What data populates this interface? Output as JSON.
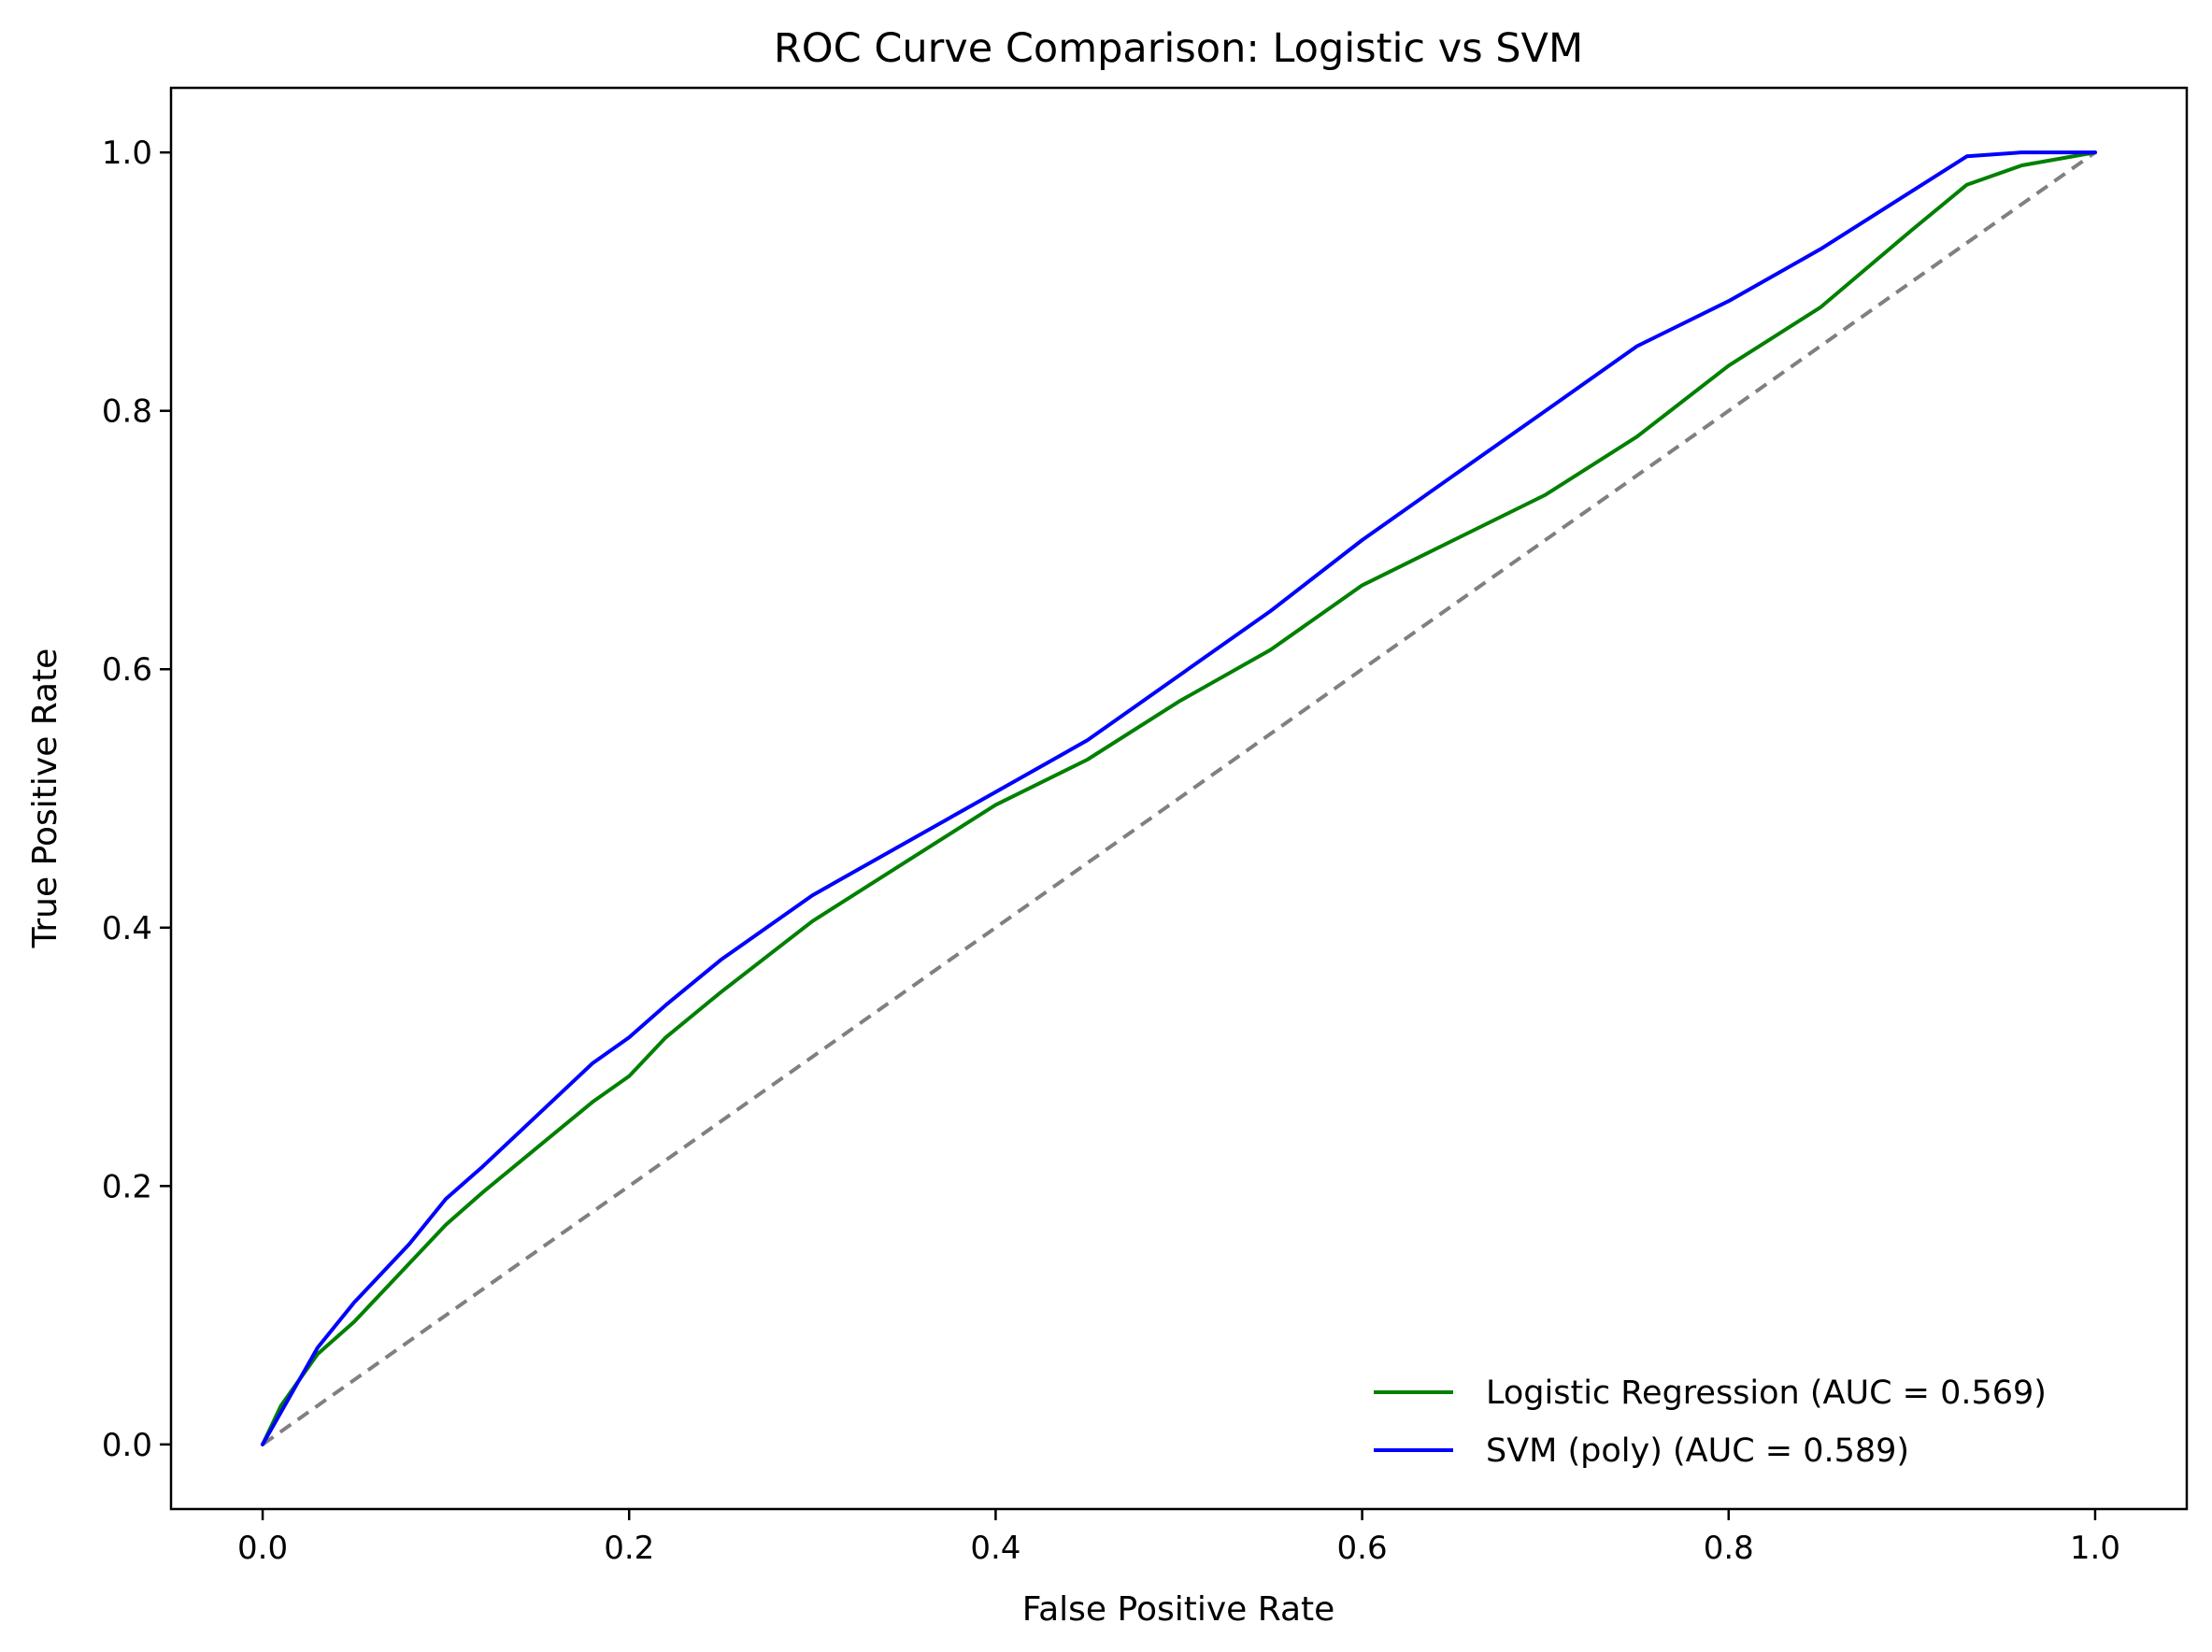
{
  "chart_data": {
    "type": "line",
    "title": "ROC Curve Comparison: Logistic vs SVM",
    "xlabel": "False Positive Rate",
    "ylabel": "True Positive Rate",
    "xlim": [
      -0.05,
      1.05
    ],
    "ylim": [
      -0.05,
      1.05
    ],
    "xticks": [
      0.0,
      0.2,
      0.4,
      0.6,
      0.8,
      1.0
    ],
    "xtick_labels": [
      "0.0",
      "0.2",
      "0.4",
      "0.6",
      "0.8",
      "1.0"
    ],
    "yticks": [
      0.0,
      0.2,
      0.4,
      0.6,
      0.8,
      1.0
    ],
    "ytick_labels": [
      "0.0",
      "0.2",
      "0.4",
      "0.6",
      "0.8",
      "1.0"
    ],
    "grid": false,
    "legend_position": "lower-right",
    "series": [
      {
        "name": "Logistic Regression (AUC = 0.569)",
        "color": "#008000",
        "style": "solid",
        "x": [
          0.0,
          0.01,
          0.02,
          0.03,
          0.05,
          0.08,
          0.1,
          0.12,
          0.15,
          0.18,
          0.2,
          0.22,
          0.25,
          0.3,
          0.35,
          0.4,
          0.45,
          0.5,
          0.55,
          0.6,
          0.65,
          0.7,
          0.75,
          0.8,
          0.85,
          0.9,
          0.93,
          0.96,
          1.0
        ],
        "y": [
          0.0,
          0.03,
          0.05,
          0.07,
          0.095,
          0.14,
          0.17,
          0.195,
          0.23,
          0.265,
          0.285,
          0.315,
          0.35,
          0.405,
          0.45,
          0.495,
          0.53,
          0.575,
          0.615,
          0.665,
          0.7,
          0.735,
          0.78,
          0.835,
          0.88,
          0.94,
          0.975,
          0.99,
          1.0
        ]
      },
      {
        "name": "SVM (poly) (AUC = 0.589)",
        "color": "#0000ff",
        "style": "solid",
        "x": [
          0.0,
          0.01,
          0.02,
          0.03,
          0.05,
          0.08,
          0.1,
          0.12,
          0.15,
          0.18,
          0.2,
          0.22,
          0.25,
          0.3,
          0.35,
          0.4,
          0.45,
          0.5,
          0.55,
          0.6,
          0.65,
          0.7,
          0.75,
          0.8,
          0.85,
          0.9,
          0.93,
          0.96,
          1.0
        ],
        "y": [
          0.0,
          0.025,
          0.05,
          0.075,
          0.11,
          0.155,
          0.19,
          0.215,
          0.255,
          0.295,
          0.315,
          0.34,
          0.375,
          0.425,
          0.465,
          0.505,
          0.545,
          0.595,
          0.645,
          0.7,
          0.75,
          0.8,
          0.85,
          0.885,
          0.925,
          0.97,
          0.997,
          1.0,
          1.0
        ]
      }
    ],
    "reference_line": {
      "x": [
        0,
        1
      ],
      "y": [
        0,
        1
      ],
      "color": "#808080",
      "style": "dashed"
    }
  }
}
